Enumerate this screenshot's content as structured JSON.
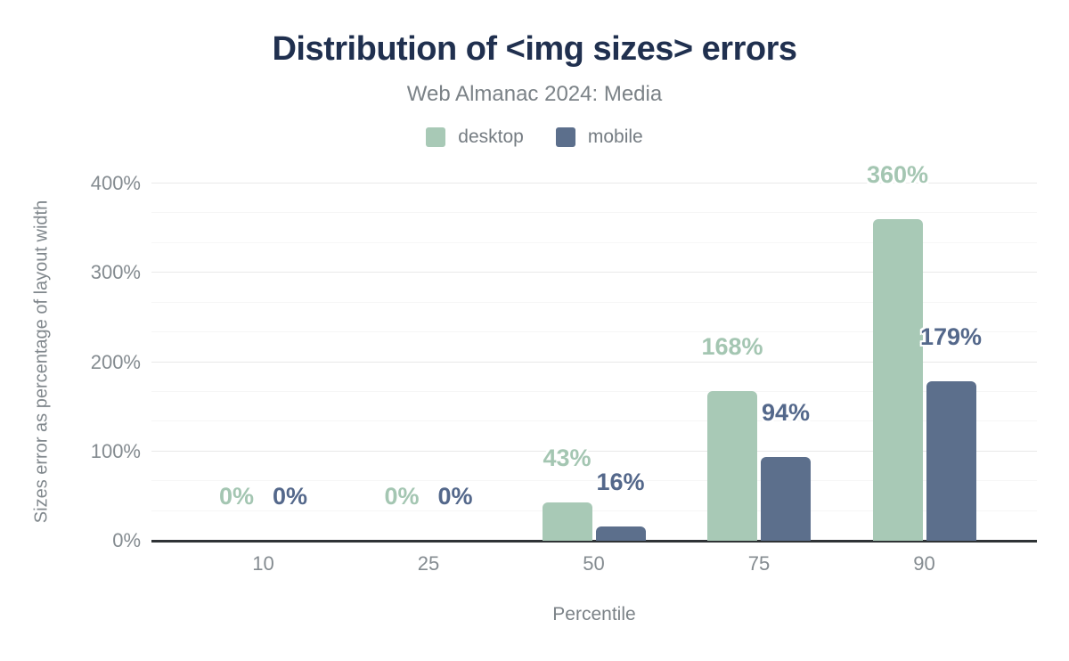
{
  "header": {
    "title": "Distribution of <img sizes> errors",
    "subtitle": "Web Almanac 2024: Media"
  },
  "axes": {
    "y_title": "Sizes error as percentage of layout width",
    "x_title": "Percentile"
  },
  "chart_data": {
    "type": "bar",
    "title": "Distribution of <img sizes> errors",
    "subtitle": "Web Almanac 2024: Media",
    "categories": [
      "10",
      "25",
      "50",
      "75",
      "90"
    ],
    "series": [
      {
        "name": "desktop",
        "color": "#a8c9b6",
        "label_color": "#a4c6b2",
        "values": [
          0,
          0,
          43,
          168,
          360
        ]
      },
      {
        "name": "mobile",
        "color": "#5c6f8c",
        "label_color": "#54688b",
        "values": [
          0,
          0,
          16,
          94,
          179
        ]
      }
    ],
    "value_suffix": "%",
    "xlabel": "Percentile",
    "ylabel": "Sizes error as percentage of layout width",
    "yticks": [
      0,
      100,
      200,
      300,
      400
    ],
    "ytick_suffix": "%",
    "ylim": [
      0,
      400
    ],
    "grid": "major with 2 minor lines per interval",
    "legend_position": "top-center",
    "label_position": "above bars"
  },
  "colors": {
    "background": "#ffffff",
    "title": "#20304f",
    "subtitle": "#7b8287",
    "legend_text": "#757c82",
    "tick_labels": "#848b90",
    "axis_titles": "#80878c",
    "gridline_major": "#e9e9e9",
    "gridline_minor": "#f6f6f6",
    "baseline": "#2f3336",
    "desktop": "#a8c9b6",
    "mobile": "#5c6f8c"
  }
}
